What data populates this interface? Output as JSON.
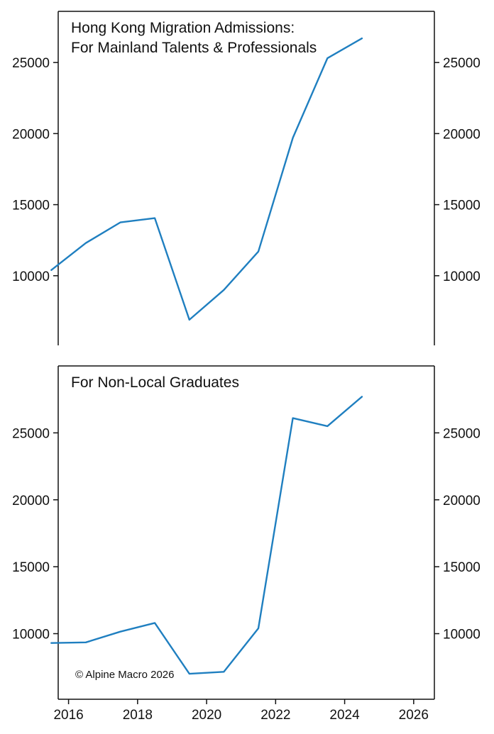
{
  "colors": {
    "line": "#1f7fc0",
    "axis": "#111111",
    "background": "#ffffff"
  },
  "chart_data": [
    {
      "type": "line",
      "title_lines": [
        "Hong Kong Migration Admissions:",
        "For Mainland Talents & Professionals"
      ],
      "x_ticks": [
        2016,
        2018,
        2020,
        2022,
        2024,
        2026
      ],
      "y_ticks": [
        10000,
        15000,
        20000,
        25000
      ],
      "xlim": [
        2015.7,
        2026.6
      ],
      "ylim": [
        5100,
        28600
      ],
      "grid": false,
      "series": [
        {
          "x": [
            2015.5,
            2016.5,
            2017.5,
            2018.5,
            2019.5,
            2020.5,
            2021.5,
            2022.5,
            2023.5,
            2024.5
          ],
          "y": [
            10400,
            12300,
            13750,
            14050,
            6900,
            9000,
            11700,
            19700,
            25300,
            26700
          ]
        }
      ],
      "annotation": ""
    },
    {
      "type": "line",
      "title_lines": [
        "For Non-Local Graduates"
      ],
      "x_ticks": [
        2016,
        2018,
        2020,
        2022,
        2024,
        2026
      ],
      "y_ticks": [
        10000,
        15000,
        20000,
        25000
      ],
      "xlim": [
        2015.7,
        2026.6
      ],
      "ylim": [
        5100,
        30000
      ],
      "grid": false,
      "series": [
        {
          "x": [
            2015.5,
            2016.5,
            2017.5,
            2018.5,
            2019.5,
            2020.5,
            2021.5,
            2022.5,
            2023.5,
            2024.5
          ],
          "y": [
            9300,
            9350,
            10150,
            10800,
            7000,
            7150,
            10400,
            26100,
            25500,
            27700
          ]
        }
      ],
      "annotation": "© Alpine Macro 2026"
    }
  ]
}
